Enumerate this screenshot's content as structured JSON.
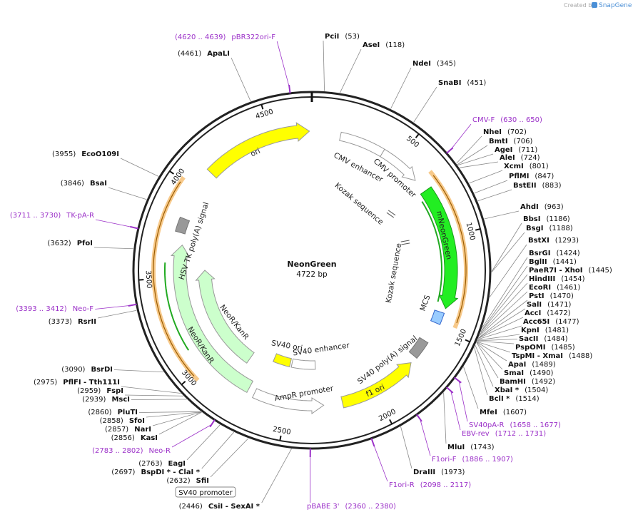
{
  "credit": {
    "text": "Created by",
    "brand": "SnapGene"
  },
  "map": {
    "name": "NeonGreen",
    "size": "4722 bp"
  },
  "ruler": [
    500,
    1000,
    1500,
    2000,
    2500,
    3000,
    3500,
    4000,
    4500
  ],
  "sites": [
    {
      "name": "PciI",
      "position": "(53)"
    },
    {
      "name": "AseI",
      "position": "(118)"
    },
    {
      "name": "NdeI",
      "position": "(345)"
    },
    {
      "name": "SnaBI",
      "position": "(451)"
    },
    {
      "name": "NheI",
      "position": "(702)"
    },
    {
      "name": "BmtI",
      "position": "(706)"
    },
    {
      "name": "AgeI",
      "position": "(711)"
    },
    {
      "name": "AleI",
      "position": "(724)"
    },
    {
      "name": "XcmI",
      "position": "(801)"
    },
    {
      "name": "PflMI",
      "position": "(847)"
    },
    {
      "name": "BstEII",
      "position": "(883)"
    },
    {
      "name": "AhdI",
      "position": "(963)"
    },
    {
      "name": "BbsI",
      "position": "(1186)"
    },
    {
      "name": "BsgI",
      "position": "(1188)"
    },
    {
      "name": "BstXI",
      "position": "(1293)"
    },
    {
      "name": "BsrGI",
      "position": "(1424)"
    },
    {
      "name": "BglII",
      "position": "(1441)"
    },
    {
      "name": "PaeR7I - XhoI",
      "position": "(1445)"
    },
    {
      "name": "HindIII",
      "position": "(1454)"
    },
    {
      "name": "EcoRI",
      "position": "(1461)"
    },
    {
      "name": "PstI",
      "position": "(1470)"
    },
    {
      "name": "SalI",
      "position": "(1471)"
    },
    {
      "name": "AccI",
      "position": "(1472)"
    },
    {
      "name": "Acc65I",
      "position": "(1477)"
    },
    {
      "name": "KpnI",
      "position": "(1481)"
    },
    {
      "name": "SacII",
      "position": "(1484)"
    },
    {
      "name": "PspOMI",
      "position": "(1485)"
    },
    {
      "name": "TspMI - XmaI",
      "position": "(1488)"
    },
    {
      "name": "ApaI",
      "position": "(1489)"
    },
    {
      "name": "SmaI",
      "position": "(1490)"
    },
    {
      "name": "BamHI",
      "position": "(1492)"
    },
    {
      "name": "XbaI *",
      "position": "(1504)"
    },
    {
      "name": "BclI *",
      "position": "(1514)"
    },
    {
      "name": "MfeI",
      "position": "(1607)"
    },
    {
      "name": "MluI",
      "position": "(1743)"
    },
    {
      "name": "DraIII",
      "position": "(1973)"
    },
    {
      "name": "ApaLI",
      "position": "(4461)"
    },
    {
      "name": "EcoO109I",
      "position": "(3955)"
    },
    {
      "name": "BsaI",
      "position": "(3846)"
    },
    {
      "name": "PfoI",
      "position": "(3632)"
    },
    {
      "name": "RsrII",
      "position": "(3373)"
    },
    {
      "name": "BsrDI",
      "position": "(3090)"
    },
    {
      "name": "PflFI - Tth111I",
      "position": "(2975)"
    },
    {
      "name": "FspI",
      "position": "(2959)"
    },
    {
      "name": "MscI",
      "position": "(2939)"
    },
    {
      "name": "PluTI",
      "position": "(2860)"
    },
    {
      "name": "SfoI",
      "position": "(2858)"
    },
    {
      "name": "NarI",
      "position": "(2857)"
    },
    {
      "name": "KasI",
      "position": "(2856)"
    },
    {
      "name": "EagI",
      "position": "(2763)"
    },
    {
      "name": "BspDI * - ClaI *",
      "position": "(2697)"
    },
    {
      "name": "SfiI",
      "position": "(2632)"
    },
    {
      "name": "CsiI - SexAI *",
      "position": "(2446)"
    }
  ],
  "primers": [
    {
      "name": "CMV-F",
      "range": "(630 .. 650)"
    },
    {
      "name": "SV40pA-R",
      "range": "(1658 .. 1677)"
    },
    {
      "name": "EBV-rev",
      "range": "(1712 .. 1731)"
    },
    {
      "name": "F1ori-F",
      "range": "(1886 .. 1907)"
    },
    {
      "name": "F1ori-R",
      "range": "(2098 .. 2117)"
    },
    {
      "name": "pBABE 3'",
      "range": "(2360 .. 2380)"
    },
    {
      "name": "pBR322ori-F",
      "range": "(4620 .. 4639)"
    },
    {
      "name": "TK-pA-R",
      "range": "(3711 .. 3730)"
    },
    {
      "name": "Neo-F",
      "range": "(3393 .. 3412)"
    },
    {
      "name": "Neo-R",
      "range": "(2783 .. 2802)"
    }
  ],
  "features": [
    {
      "label": "ori"
    },
    {
      "label": "CMV enhancer"
    },
    {
      "label": "CMV promoter"
    },
    {
      "label": "Kozak sequence"
    },
    {
      "label": "mNeonGreen"
    },
    {
      "label": "Kozak sequence"
    },
    {
      "label": "MCS"
    },
    {
      "label": "SV40 poly(A) signal"
    },
    {
      "label": "f1 ori"
    },
    {
      "label": "SV40 ori"
    },
    {
      "label": "SV40 enhancer"
    },
    {
      "label": "AmpR promoter"
    },
    {
      "label": "NeoR/KanR"
    },
    {
      "label": "NeoR/KanR"
    },
    {
      "label": "HSV TK poly(A) signal"
    }
  ],
  "promoter_box": "SV40 promoter"
}
